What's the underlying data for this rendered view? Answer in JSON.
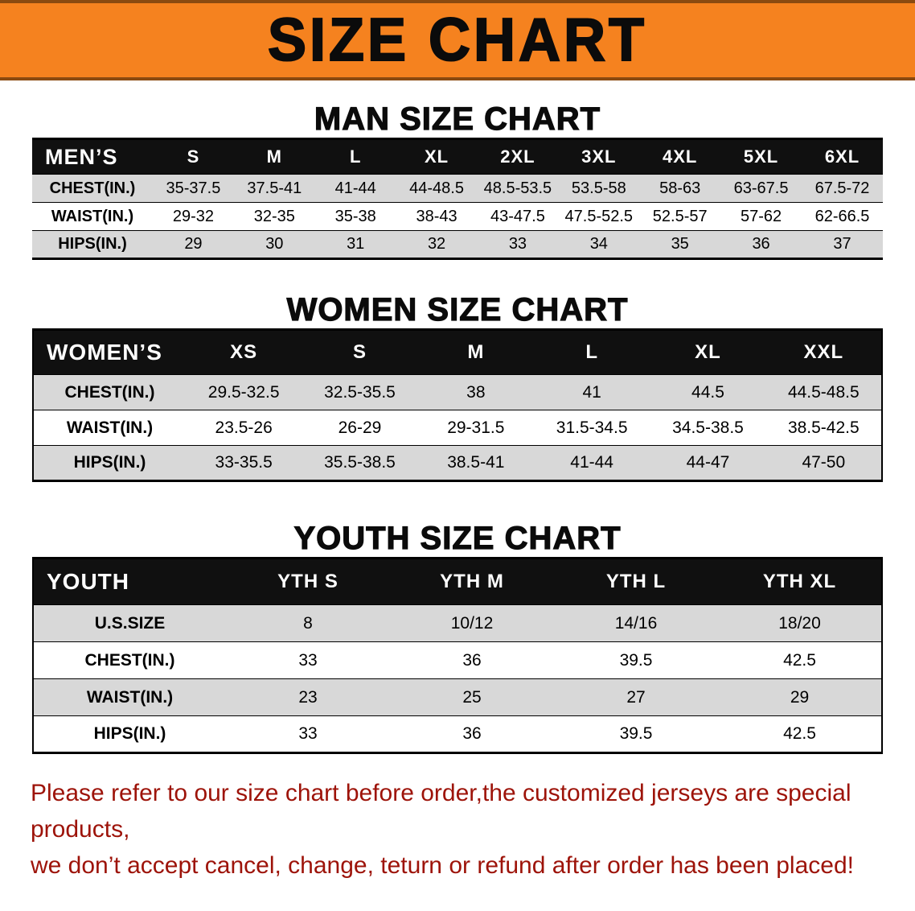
{
  "colors": {
    "banner_bg": "#f5821f",
    "banner_edge": "#8a4a10",
    "header_bg": "#101010",
    "row_alt": "#d8d8d8",
    "table_border": "#000000",
    "disclaimer_color": "#9d1309"
  },
  "banner": {
    "title": "SIZE CHART"
  },
  "man_section": {
    "heading": "MAN SIZE CHART",
    "table": {
      "header": [
        "MEN’S",
        "S",
        "M",
        "L",
        "XL",
        "2XL",
        "3XL",
        "4XL",
        "5XL",
        "6XL"
      ],
      "rows": [
        [
          "CHEST(IN.)",
          "35-37.5",
          "37.5-41",
          "41-44",
          "44-48.5",
          "48.5-53.5",
          "53.5-58",
          "58-63",
          "63-67.5",
          "67.5-72"
        ],
        [
          "WAIST(IN.)",
          "29-32",
          "32-35",
          "35-38",
          "38-43",
          "43-47.5",
          "47.5-52.5",
          "52.5-57",
          "57-62",
          "62-66.5"
        ],
        [
          "HIPS(IN.)",
          "29",
          "30",
          "31",
          "32",
          "33",
          "34",
          "35",
          "36",
          "37"
        ]
      ]
    }
  },
  "women_section": {
    "heading": "WOMEN SIZE CHART",
    "table": {
      "header": [
        "WOMEN’S",
        "XS",
        "S",
        "M",
        "L",
        "XL",
        "XXL"
      ],
      "rows": [
        [
          "CHEST(IN.)",
          "29.5-32.5",
          "32.5-35.5",
          "38",
          "41",
          "44.5",
          "44.5-48.5"
        ],
        [
          "WAIST(IN.)",
          "23.5-26",
          "26-29",
          "29-31.5",
          "31.5-34.5",
          "34.5-38.5",
          "38.5-42.5"
        ],
        [
          "HIPS(IN.)",
          "33-35.5",
          "35.5-38.5",
          "38.5-41",
          "41-44",
          "44-47",
          "47-50"
        ]
      ]
    }
  },
  "youth_section": {
    "heading": "YOUTH SIZE CHART",
    "table": {
      "header": [
        "YOUTH",
        "YTH S",
        "YTH M",
        "YTH L",
        "YTH XL"
      ],
      "rows": [
        [
          "U.S.SIZE",
          "8",
          "10/12",
          "14/16",
          "18/20"
        ],
        [
          "CHEST(IN.)",
          "33",
          "36",
          "39.5",
          "42.5"
        ],
        [
          "WAIST(IN.)",
          "23",
          "25",
          "27",
          "29"
        ],
        [
          "HIPS(IN.)",
          "33",
          "36",
          "39.5",
          "42.5"
        ]
      ]
    }
  },
  "disclaimer": {
    "line1": "Please refer to our size chart before order,the customized jerseys are special products,",
    "line2": "we don’t accept cancel, change, teturn or refund after order has been placed!"
  }
}
